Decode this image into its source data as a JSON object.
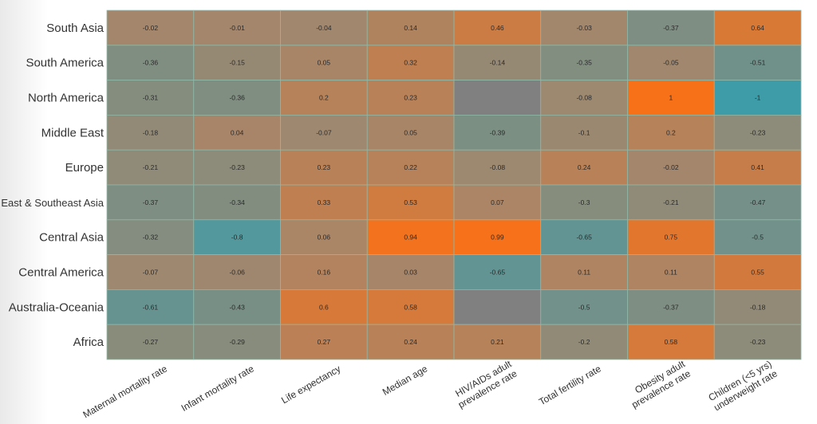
{
  "chart_data": {
    "type": "heatmap",
    "title": "",
    "xlabel": "",
    "ylabel": "",
    "color_scale": {
      "min_value": -1,
      "max_value": 1,
      "low_color": "#3D9CA8",
      "mid_color": "#A5866B",
      "high_color": "#F77118",
      "missing_color": "#808080"
    },
    "rows": [
      "South Asia",
      "South America",
      "North America",
      "Middle East",
      "Europe",
      "East & Southeast Asia",
      "Central Asia",
      "Central America",
      "Australia-Oceania",
      "Africa"
    ],
    "columns": [
      [
        "Maternal mortality rate"
      ],
      [
        "Infant mortality rate"
      ],
      [
        "Life expectancy"
      ],
      [
        "Median age"
      ],
      [
        "HIV/AIDs adult",
        "prevalence rate"
      ],
      [
        "Total fertility rate"
      ],
      [
        "Obesity adult",
        "prevalence rate"
      ],
      [
        "Children (<5 yrs)",
        "underweight rate"
      ]
    ],
    "values": [
      [
        "-0.02",
        "-0.01",
        "-0.04",
        "0.14",
        "0.46",
        "-0.03",
        "-0.37",
        "0.64"
      ],
      [
        "-0.36",
        "-0.15",
        "0.05",
        "0.32",
        "-0.14",
        "-0.35",
        "-0.05",
        "-0.51"
      ],
      [
        "-0.31",
        "-0.36",
        "0.2",
        "0.23",
        null,
        "-0.08",
        "1",
        "-1"
      ],
      [
        "-0.18",
        "0.04",
        "-0.07",
        "0.05",
        "-0.39",
        "-0.1",
        "0.2",
        "-0.23"
      ],
      [
        "-0.21",
        "-0.23",
        "0.23",
        "0.22",
        "-0.08",
        "0.24",
        "-0.02",
        "0.41"
      ],
      [
        "-0.37",
        "-0.34",
        "0.33",
        "0.53",
        "0.07",
        "-0.3",
        "-0.21",
        "-0.47"
      ],
      [
        "-0.32",
        "-0.8",
        "0.06",
        "0.94",
        "0.99",
        "-0.65",
        "0.75",
        "-0.5"
      ],
      [
        "-0.07",
        "-0.06",
        "0.16",
        "0.03",
        "-0.65",
        "0.11",
        "0.11",
        "0.55"
      ],
      [
        "-0.61",
        "-0.43",
        "0.6",
        "0.58",
        null,
        "-0.5",
        "-0.37",
        "-0.18"
      ],
      [
        "-0.27",
        "-0.29",
        "0.27",
        "0.24",
        "0.21",
        "-0.2",
        "0.58",
        "-0.23"
      ]
    ]
  }
}
